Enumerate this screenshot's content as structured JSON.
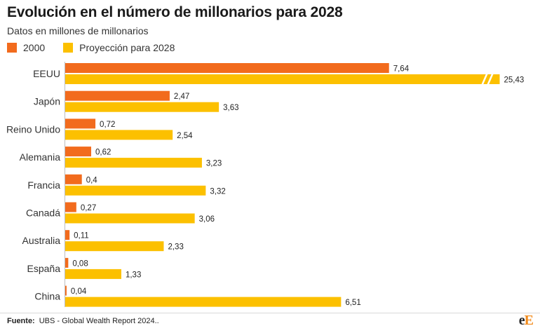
{
  "title": "Evolución en el número de millonarios para 2028",
  "subtitle": "Datos en millones de millonarios",
  "colors": {
    "series_2000": "#f26b1d",
    "series_2028": "#fcc000"
  },
  "chart_data": {
    "type": "bar",
    "orientation": "horizontal",
    "categories": [
      "EEUU",
      "Japón",
      "Reino Unido",
      "Alemania",
      "Francia",
      "Canadá",
      "Australia",
      "España",
      "China"
    ],
    "series": [
      {
        "name": "2000",
        "values": [
          7.64,
          2.47,
          0.72,
          0.62,
          0.4,
          0.27,
          0.11,
          0.08,
          0.04
        ],
        "labels": [
          "7,64",
          "2,47",
          "0,72",
          "0,62",
          "0,4",
          "0,27",
          "0,11",
          "0,08",
          "0,04"
        ]
      },
      {
        "name": "Proyección para 2028",
        "values": [
          25.43,
          3.63,
          2.54,
          3.23,
          3.32,
          3.06,
          2.33,
          1.33,
          6.51
        ],
        "labels": [
          "25,43",
          "3,63",
          "2,54",
          "3,23",
          "3,32",
          "3,06",
          "2,33",
          "1,33",
          "6,51"
        ]
      }
    ],
    "axis_break": {
      "category": "EEUU",
      "series": "Proyección para 2028"
    },
    "legend_position": "top-left",
    "grid": false
  },
  "footer": {
    "source_label": "Fuente:",
    "source_text": "UBS - Global Wealth Report 2024..",
    "logo_e1": "e",
    "logo_e2": "E"
  }
}
